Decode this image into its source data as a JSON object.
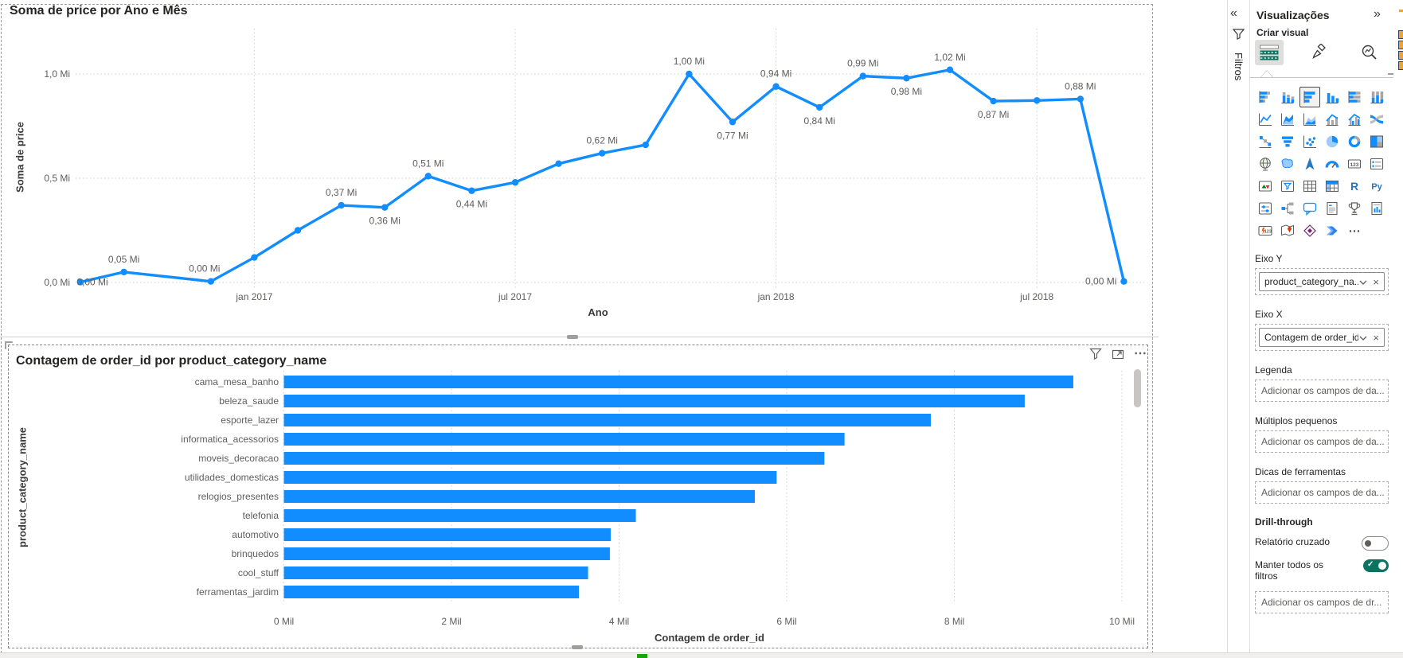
{
  "colors": {
    "accent_blue": "#118DFF",
    "teal": "#0D7361",
    "text_dark": "#252423",
    "text_muted": "#605e5c",
    "gridline": "#d2d0ce"
  },
  "chart_data": [
    {
      "type": "line",
      "title": "Soma de price por Ano e Mês",
      "xlabel": "Ano",
      "ylabel": "Soma de price",
      "unit": "Mi",
      "ylim": [
        0,
        1.1
      ],
      "grid": true,
      "legend": "none",
      "y_ticks": [
        {
          "label": "0,0 Mi",
          "v": 0
        },
        {
          "label": "0,5 Mi",
          "v": 0.5
        },
        {
          "label": "1,0 Mi",
          "v": 1
        }
      ],
      "x_ticks": [
        {
          "label": "jan 2017",
          "m": 4
        },
        {
          "label": "jul 2017",
          "m": 10
        },
        {
          "label": "jan 2018",
          "m": 16
        },
        {
          "label": "jul 2018",
          "m": 22
        }
      ],
      "points": [
        {
          "month": "set 2016",
          "m": 0,
          "v": 0.002,
          "label": "0,00 Mi",
          "pos": "axis"
        },
        {
          "month": "out 2016",
          "m": 1,
          "v": 0.05,
          "label": "0,05 Mi",
          "pos": "above"
        },
        {
          "month": "dez 2016",
          "m": 3,
          "v": 0.005,
          "label": "0,00 Mi",
          "pos": "above",
          "dx": -8
        },
        {
          "month": "jan 2017",
          "m": 4,
          "v": 0.12
        },
        {
          "month": "fev 2017",
          "m": 5,
          "v": 0.25
        },
        {
          "month": "mar 2017",
          "m": 6,
          "v": 0.37,
          "label": "0,37 Mi",
          "pos": "above"
        },
        {
          "month": "abr 2017",
          "m": 7,
          "v": 0.36,
          "label": "0,36 Mi",
          "pos": "below"
        },
        {
          "month": "mai 2017",
          "m": 8,
          "v": 0.51,
          "label": "0,51 Mi",
          "pos": "above"
        },
        {
          "month": "jun 2017",
          "m": 9,
          "v": 0.44,
          "label": "0,44 Mi",
          "pos": "below"
        },
        {
          "month": "jul 2017",
          "m": 10,
          "v": 0.48
        },
        {
          "month": "ago 2017",
          "m": 11,
          "v": 0.57
        },
        {
          "month": "set 2017",
          "m": 12,
          "v": 0.62,
          "label": "0,62 Mi",
          "pos": "above"
        },
        {
          "month": "out 2017",
          "m": 13,
          "v": 0.66
        },
        {
          "month": "nov 2017",
          "m": 14,
          "v": 1.0,
          "label": "1,00 Mi",
          "pos": "above"
        },
        {
          "month": "dez 2017",
          "m": 15,
          "v": 0.77,
          "label": "0,77 Mi",
          "pos": "below"
        },
        {
          "month": "jan 2018",
          "m": 16,
          "v": 0.94,
          "label": "0,94 Mi",
          "pos": "above"
        },
        {
          "month": "fev 2018",
          "m": 17,
          "v": 0.84,
          "label": "0,84 Mi",
          "pos": "below"
        },
        {
          "month": "mar 2018",
          "m": 18,
          "v": 0.99,
          "label": "0,99 Mi",
          "pos": "above"
        },
        {
          "month": "abr 2018",
          "m": 19,
          "v": 0.98,
          "label": "0,98 Mi",
          "pos": "below"
        },
        {
          "month": "mai 2018",
          "m": 20,
          "v": 1.02,
          "label": "1,02 Mi",
          "pos": "above"
        },
        {
          "month": "jun 2018",
          "m": 21,
          "v": 0.87,
          "label": "0,87 Mi",
          "pos": "below"
        },
        {
          "month": "jul 2018",
          "m": 22,
          "v": 0.873
        },
        {
          "month": "ago 2018",
          "m": 23,
          "v": 0.88,
          "label": "0,88 Mi",
          "pos": "above"
        },
        {
          "month": "set 2018",
          "m": 24,
          "v": 0.005,
          "label": "0,00 Mi",
          "pos": "end"
        }
      ]
    },
    {
      "type": "bar",
      "title": "Contagem de order_id por product_category_name",
      "xlabel": "Contagem de order_id",
      "ylabel": "product_category_name",
      "unit": "Mil",
      "xlim": [
        0,
        10
      ],
      "grid": true,
      "x_ticks": [
        "0 Mil",
        "2 Mil",
        "4 Mil",
        "6 Mil",
        "8 Mil",
        "10 Mil"
      ],
      "categories": [
        "cama_mesa_banho",
        "beleza_saude",
        "esporte_lazer",
        "informatica_acessorios",
        "moveis_decoracao",
        "utilidades_domesticas",
        "relogios_presentes",
        "telefonia",
        "automotivo",
        "brinquedos",
        "cool_stuff",
        "ferramentas_jardim"
      ],
      "values": [
        9.42,
        8.84,
        7.72,
        6.69,
        6.45,
        5.88,
        5.62,
        4.2,
        3.9,
        3.89,
        3.63,
        3.52
      ]
    }
  ],
  "bar_visual_header": {
    "more_icon_label": "⋯"
  },
  "filters_pane": {
    "collapse_icon": "«",
    "title": "Filtros"
  },
  "viz_panel": {
    "title": "Visualizações",
    "expand_icon": "»",
    "section_label": "Criar visual",
    "tabs": [
      {
        "name": "build-visual",
        "selected": true
      },
      {
        "name": "format-visual",
        "selected": false
      },
      {
        "name": "analytics",
        "selected": false
      }
    ],
    "gallery": {
      "selected": "clustered-bar-chart",
      "items": [
        "stacked-bar-chart",
        "stacked-column-chart",
        "clustered-bar-chart",
        "clustered-column-chart",
        "100-stacked-bar-chart",
        "100-stacked-column-chart",
        "line-chart",
        "area-chart",
        "stacked-area-chart",
        "line-and-stacked-column-chart",
        "line-and-clustered-column-chart",
        "ribbon-chart",
        "waterfall-chart",
        "funnel-chart",
        "scatter-chart",
        "pie-chart",
        "donut-chart",
        "treemap",
        "map",
        "filled-map",
        "azure-map",
        "gauge",
        "card",
        "multi-row-card",
        "kpi",
        "slicer",
        "table",
        "matrix",
        "r-script-visual",
        "python-visual",
        "new-slicer",
        "decomposition-tree",
        "qa-visual",
        "smart-narrative",
        "metrics",
        "paginated-report",
        "new-card",
        "arcgis-map",
        "power-apps",
        "power-automate",
        "more-visuals"
      ]
    },
    "wells": [
      {
        "label": "Eixo Y",
        "pill": "product_category_na..."
      },
      {
        "label": "Eixo X",
        "pill": "Contagem de order_id"
      },
      {
        "label": "Legenda",
        "placeholder": "Adicionar os campos de da..."
      },
      {
        "label": "Múltiplos pequenos",
        "placeholder": "Adicionar os campos de da..."
      },
      {
        "label": "Dicas de ferramentas",
        "placeholder": "Adicionar os campos de da..."
      }
    ],
    "drill": {
      "title": "Drill-through",
      "cross_report_label": "Relatório cruzado",
      "cross_report_on": false,
      "keep_filters_label": "Manter todos os filtros",
      "keep_filters_on": true,
      "well_placeholder": "Adicionar os campos de dr..."
    }
  }
}
